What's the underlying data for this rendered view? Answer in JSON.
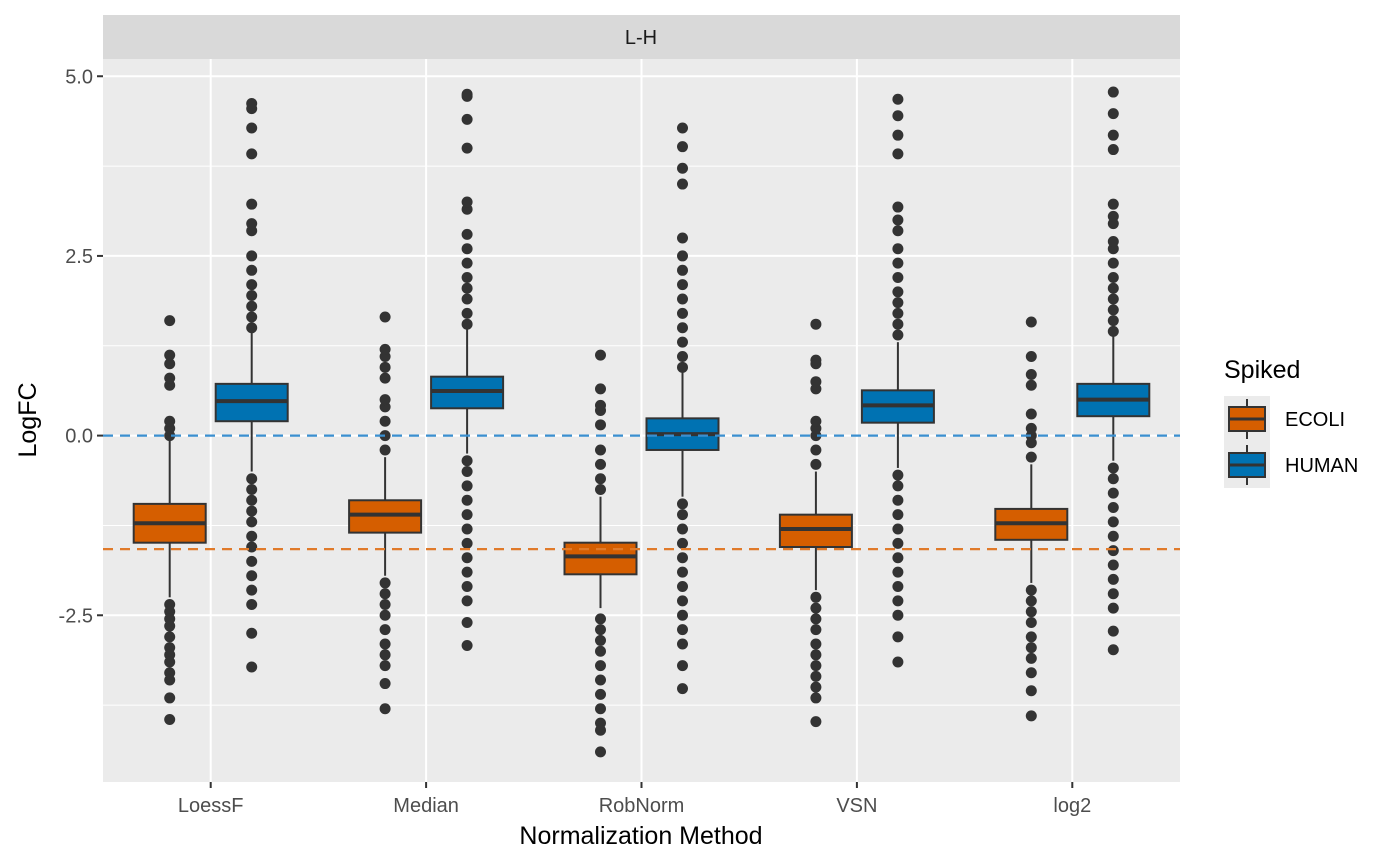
{
  "chart_data": {
    "type": "boxplot",
    "facet_label": "L-H",
    "xlabel": "Normalization Method",
    "ylabel": "LogFC",
    "categories": [
      "LoessF",
      "Median",
      "RobNorm",
      "VSN",
      "log2"
    ],
    "ylim": [
      -4.65,
      5.8
    ],
    "yticks": [
      {
        "value": 5.0,
        "label": "5.0"
      },
      {
        "value": 2.5,
        "label": "2.5"
      },
      {
        "value": 0.0,
        "label": "0.0"
      },
      {
        "value": -2.5,
        "label": "-2.5"
      }
    ],
    "grid": true,
    "legend": {
      "title": "Spiked",
      "position": "right",
      "entries": [
        {
          "label": "ECOLI",
          "color": "#D55E00"
        },
        {
          "label": "HUMAN",
          "color": "#0072B2"
        }
      ]
    },
    "reference_lines": [
      {
        "y": 0.0,
        "color": "#3a8fd0",
        "style": "dashed"
      },
      {
        "y": -1.58,
        "color": "#e07a2a",
        "style": "dashed"
      }
    ],
    "series": [
      {
        "name": "ECOLI",
        "color": "#D55E00",
        "boxes": [
          {
            "category": "LoessF",
            "whisker_low": -2.25,
            "q1": -1.49,
            "median": -1.22,
            "q3": -0.95,
            "whisker_high": -0.05,
            "outliers_low": [
              -2.35,
              -2.45,
              -2.55,
              -2.65,
              -2.8,
              -2.95,
              -3.05,
              -3.15,
              -3.3,
              -3.4,
              -3.65,
              -3.95
            ],
            "outliers_high": [
              0.0,
              0.1,
              0.2,
              0.7,
              0.8,
              1.0,
              1.12,
              1.6
            ]
          },
          {
            "category": "Median",
            "whisker_low": -1.95,
            "q1": -1.35,
            "median": -1.1,
            "q3": -0.9,
            "whisker_high": -0.3,
            "outliers_low": [
              -2.05,
              -2.2,
              -2.35,
              -2.5,
              -2.7,
              -2.9,
              -3.05,
              -3.2,
              -3.45,
              -3.8
            ],
            "outliers_high": [
              -0.2,
              0.0,
              0.2,
              0.4,
              0.5,
              0.8,
              0.95,
              1.1,
              1.2,
              1.65
            ]
          },
          {
            "category": "RobNorm",
            "whisker_low": -2.4,
            "q1": -1.93,
            "median": -1.68,
            "q3": -1.49,
            "whisker_high": -0.85,
            "outliers_low": [
              -2.55,
              -2.7,
              -2.85,
              -3.0,
              -3.2,
              -3.4,
              -3.6,
              -3.8,
              -4.0,
              -4.1,
              -4.4
            ],
            "outliers_high": [
              -0.75,
              -0.6,
              -0.4,
              -0.2,
              0.15,
              0.35,
              0.42,
              0.65,
              1.12
            ]
          },
          {
            "category": "VSN",
            "whisker_low": -2.15,
            "q1": -1.55,
            "median": -1.3,
            "q3": -1.1,
            "whisker_high": -0.5,
            "outliers_low": [
              -2.25,
              -2.4,
              -2.55,
              -2.7,
              -2.9,
              -3.05,
              -3.2,
              -3.35,
              -3.5,
              -3.65,
              -3.98
            ],
            "outliers_high": [
              -0.4,
              -0.2,
              0.0,
              0.1,
              0.2,
              0.65,
              0.75,
              1.0,
              1.05,
              1.55
            ]
          },
          {
            "category": "log2",
            "whisker_low": -2.05,
            "q1": -1.45,
            "median": -1.22,
            "q3": -1.02,
            "whisker_high": -0.4,
            "outliers_low": [
              -2.15,
              -2.3,
              -2.45,
              -2.6,
              -2.8,
              -2.95,
              -3.1,
              -3.3,
              -3.55,
              -3.9
            ],
            "outliers_high": [
              -0.3,
              -0.1,
              0.0,
              0.1,
              0.3,
              0.7,
              0.85,
              1.1,
              1.58
            ]
          }
        ]
      },
      {
        "name": "HUMAN",
        "color": "#0072B2",
        "boxes": [
          {
            "category": "LoessF",
            "whisker_low": -0.5,
            "q1": 0.2,
            "median": 0.48,
            "q3": 0.72,
            "whisker_high": 1.45,
            "outliers_low": [
              -0.6,
              -0.75,
              -0.9,
              -1.05,
              -1.2,
              -1.4,
              -1.55,
              -1.75,
              -1.95,
              -2.15,
              -2.35,
              -2.75,
              -3.22
            ],
            "outliers_high": [
              1.5,
              1.65,
              1.8,
              1.95,
              2.1,
              2.3,
              2.5,
              2.85,
              2.95,
              3.22,
              3.92,
              4.28,
              4.55,
              4.62
            ]
          },
          {
            "category": "Median",
            "whisker_low": -0.25,
            "q1": 0.38,
            "median": 0.62,
            "q3": 0.82,
            "whisker_high": 1.5,
            "outliers_low": [
              -0.35,
              -0.5,
              -0.7,
              -0.9,
              -1.1,
              -1.3,
              -1.5,
              -1.7,
              -1.9,
              -2.1,
              -2.3,
              -2.6,
              -2.92
            ],
            "outliers_high": [
              1.55,
              1.7,
              1.9,
              2.05,
              2.2,
              2.4,
              2.6,
              2.8,
              3.15,
              3.25,
              4.0,
              4.4,
              4.72,
              4.75
            ]
          },
          {
            "category": "RobNorm",
            "whisker_low": -0.85,
            "q1": -0.2,
            "median": 0.02,
            "q3": 0.24,
            "whisker_high": 0.9,
            "outliers_low": [
              -0.95,
              -1.1,
              -1.3,
              -1.5,
              -1.7,
              -1.9,
              -2.1,
              -2.3,
              -2.5,
              -2.7,
              -2.9,
              -3.2,
              -3.52
            ],
            "outliers_high": [
              0.95,
              1.1,
              1.3,
              1.5,
              1.7,
              1.9,
              2.1,
              2.3,
              2.5,
              2.75,
              3.5,
              3.72,
              4.02,
              4.28
            ]
          },
          {
            "category": "VSN",
            "whisker_low": -0.45,
            "q1": 0.18,
            "median": 0.42,
            "q3": 0.63,
            "whisker_high": 1.3,
            "outliers_low": [
              -0.55,
              -0.7,
              -0.9,
              -1.1,
              -1.3,
              -1.5,
              -1.7,
              -1.9,
              -2.1,
              -2.3,
              -2.5,
              -2.8,
              -3.15
            ],
            "outliers_high": [
              1.4,
              1.55,
              1.7,
              1.85,
              2.0,
              2.2,
              2.4,
              2.6,
              2.85,
              3.0,
              3.18,
              3.92,
              4.18,
              4.45,
              4.68
            ]
          },
          {
            "category": "log2",
            "whisker_low": -0.35,
            "q1": 0.27,
            "median": 0.5,
            "q3": 0.72,
            "whisker_high": 1.4,
            "outliers_low": [
              -0.45,
              -0.6,
              -0.8,
              -1.0,
              -1.2,
              -1.4,
              -1.6,
              -1.8,
              -2.0,
              -2.2,
              -2.4,
              -2.72,
              -2.98
            ],
            "outliers_high": [
              1.45,
              1.6,
              1.75,
              1.9,
              2.05,
              2.2,
              2.4,
              2.6,
              2.7,
              2.95,
              3.05,
              3.22,
              3.98,
              4.18,
              4.48,
              4.78
            ]
          }
        ]
      }
    ]
  }
}
